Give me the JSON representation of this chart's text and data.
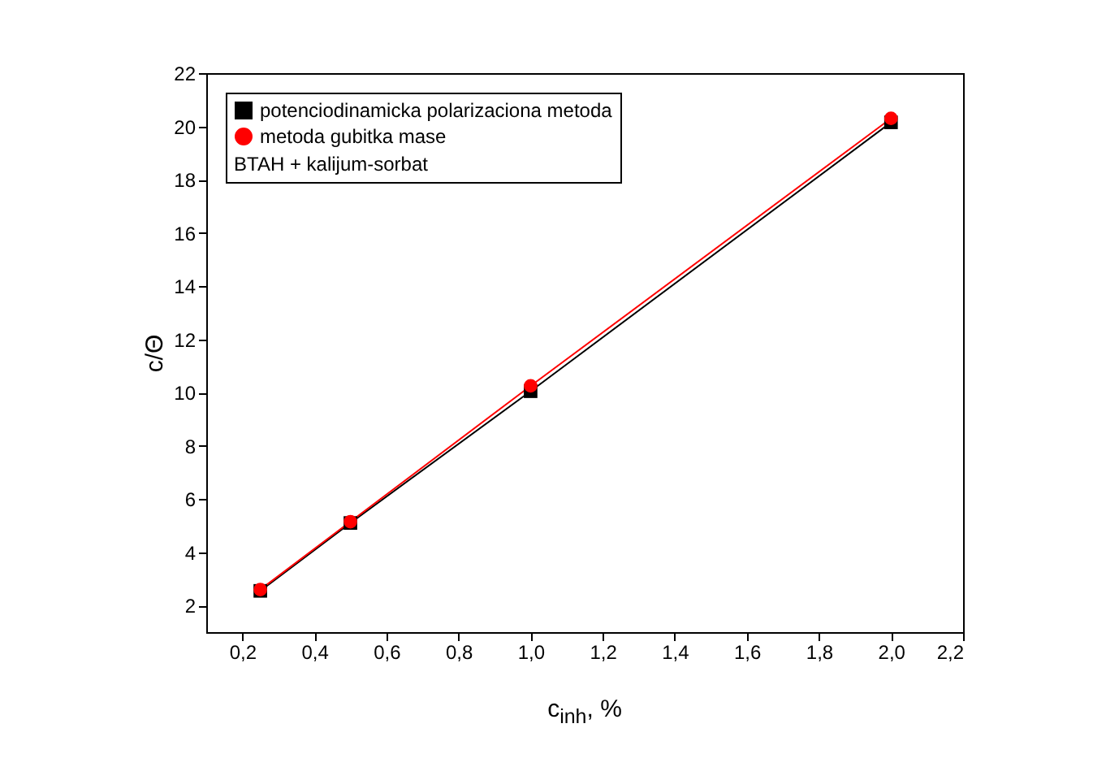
{
  "chart_data": {
    "type": "line",
    "xlabel": "c$_{inh}$, %",
    "ylabel": "c/Θ",
    "legend_title": "BTAH + kalijum-sorbat",
    "legend": "top left",
    "grid": false,
    "x": [
      0.25,
      0.5,
      1.0,
      2.0
    ],
    "series": [
      {
        "name": "potenciodinamicka polarizaciona metoda",
        "color": "#000000",
        "marker": "square",
        "values": [
          2.55,
          5.1,
          10.05,
          20.15
        ]
      },
      {
        "name": "metoda gubitka mase",
        "color": "#ff0000",
        "marker": "circle",
        "values": [
          2.6,
          5.15,
          10.25,
          20.3
        ]
      }
    ],
    "xlim": [
      0.1,
      2.2
    ],
    "xticks": [
      {
        "value": 0.2,
        "label": "0,2"
      },
      {
        "value": 0.4,
        "label": "0,4"
      },
      {
        "value": 0.6,
        "label": "0,6"
      },
      {
        "value": 0.8,
        "label": "0,8"
      },
      {
        "value": 1.0,
        "label": "1,0"
      },
      {
        "value": 1.2,
        "label": "1,2"
      },
      {
        "value": 1.4,
        "label": "1,4"
      },
      {
        "value": 1.6,
        "label": "1,6"
      },
      {
        "value": 1.8,
        "label": "1,8"
      },
      {
        "value": 2.0,
        "label": "2,0"
      },
      {
        "value": 2.2,
        "label": "2,2"
      }
    ],
    "ylim": [
      1,
      22
    ],
    "yticks": [
      2,
      4,
      6,
      8,
      10,
      12,
      14,
      16,
      18,
      20,
      22
    ]
  }
}
